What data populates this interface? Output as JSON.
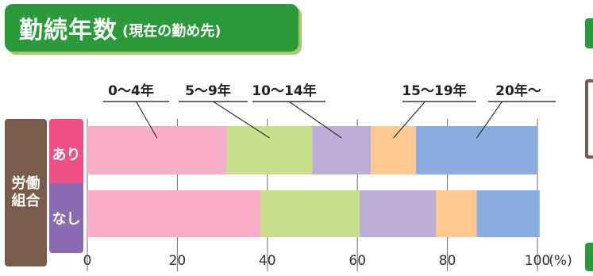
{
  "title": {
    "main": "勤続年数",
    "sub": "(現在の勤め先)"
  },
  "colors": {
    "title_bg": "#2a9a3a",
    "title_shadow": "#a9c86e",
    "group_bg": "#7a5a4a",
    "ari_bg": "#ee4f86",
    "nashi_bg": "#8a6ab0"
  },
  "chart_data": {
    "type": "bar",
    "orientation": "horizontal-stacked-percent",
    "group_label": "労働\n組合",
    "categories": [
      "あり",
      "なし"
    ],
    "series": [
      {
        "name": "0〜4年",
        "color": "#f7aec6",
        "values": [
          31,
          38.5
        ]
      },
      {
        "name": "5〜9年",
        "color": "#c7df8a",
        "values": [
          19,
          22
        ]
      },
      {
        "name": "10〜14年",
        "color": "#bcaed6",
        "values": [
          13,
          17
        ]
      },
      {
        "name": "15〜19年",
        "color": "#ffc98f",
        "values": [
          10,
          9
        ]
      },
      {
        "name": "20年〜",
        "color": "#8aaee0",
        "values": [
          27,
          14
        ]
      }
    ],
    "xticks": [
      "0",
      "20",
      "40",
      "60",
      "80",
      "100"
    ],
    "xunit": "(%)",
    "xlim": [
      0,
      100
    ]
  }
}
